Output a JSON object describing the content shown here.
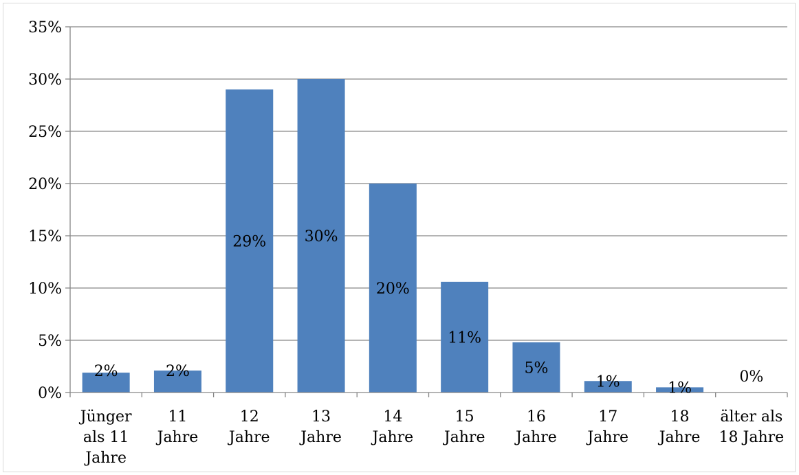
{
  "chart_data": {
    "type": "bar",
    "title": "",
    "xlabel": "",
    "ylabel": "",
    "categories": [
      [
        "Jünger",
        "als 11",
        "Jahre"
      ],
      [
        "11",
        "Jahre"
      ],
      [
        "12",
        "Jahre"
      ],
      [
        "13",
        "Jahre"
      ],
      [
        "14",
        "Jahre"
      ],
      [
        "15",
        "Jahre"
      ],
      [
        "16",
        "Jahre"
      ],
      [
        "17",
        "Jahre"
      ],
      [
        "18",
        "Jahre"
      ],
      [
        "älter als",
        "18 Jahre"
      ]
    ],
    "values": [
      1.9,
      2.1,
      29.0,
      30.0,
      20.0,
      10.6,
      4.8,
      1.1,
      0.5,
      0.0
    ],
    "data_labels": [
      "2%",
      "2%",
      "29%",
      "30%",
      "20%",
      "11%",
      "5%",
      "1%",
      "1%",
      "0%"
    ],
    "ylim": [
      0,
      35
    ],
    "yticks": [
      0,
      5,
      10,
      15,
      20,
      25,
      30,
      35
    ],
    "ytick_labels": [
      "0%",
      "5%",
      "10%",
      "15%",
      "20%",
      "25%",
      "30%",
      "35%"
    ],
    "grid": true,
    "legend": "none",
    "bar_color": "#4f81bd"
  }
}
